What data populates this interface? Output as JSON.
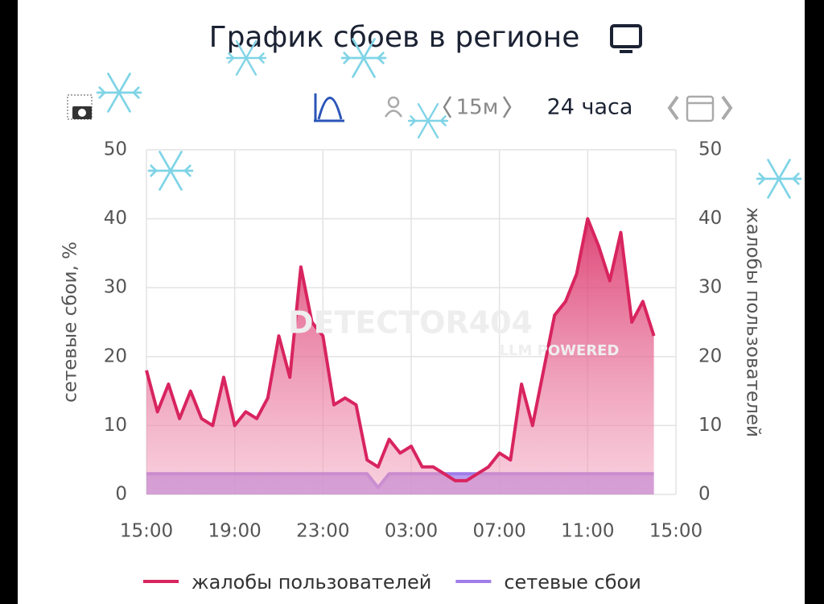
{
  "chart_data": {
    "type": "line",
    "title": "График сбоев в регионе",
    "toolbar": {
      "interval": "15м",
      "range": "24 часа"
    },
    "watermark": {
      "name": "DETECTOR404",
      "tagline": "LLM POWERED"
    },
    "ylabel": "сетевые сбои, %",
    "y2label": "жалобы пользователей",
    "categories": [
      "15:00",
      null,
      null,
      null,
      null,
      null,
      null,
      null,
      "19:00",
      null,
      null,
      null,
      null,
      null,
      null,
      null,
      "23:00",
      null,
      null,
      null,
      null,
      null,
      null,
      null,
      "03:00",
      null,
      null,
      null,
      null,
      null,
      null,
      null,
      "07:00",
      null,
      null,
      null,
      null,
      null,
      null,
      null,
      "11:00",
      null,
      null,
      null,
      null,
      null,
      null,
      null,
      "15:00"
    ],
    "series": [
      {
        "name": "жалобы пользователей",
        "color": "#d8245f",
        "axis": "y2",
        "values": [
          18,
          12,
          16,
          11,
          15,
          11,
          10,
          17,
          10,
          12,
          11,
          14,
          23,
          17,
          33,
          25,
          23,
          13,
          14,
          13,
          5,
          4,
          8,
          6,
          7,
          4,
          4,
          3,
          2,
          2,
          3,
          4,
          6,
          5,
          16,
          10,
          18,
          26,
          28,
          32,
          40,
          36,
          31,
          38,
          25,
          28,
          23,
          null,
          null
        ]
      },
      {
        "name": "сетевые сбои",
        "color": "#a07de8",
        "values": [
          3,
          3,
          3,
          3,
          3,
          3,
          3,
          3,
          3,
          3,
          3,
          3,
          3,
          3,
          3,
          3,
          3,
          3,
          3,
          3,
          3,
          1,
          3,
          3,
          3,
          3,
          3,
          3,
          3,
          3,
          3,
          3,
          3,
          3,
          3,
          3,
          3,
          3,
          3,
          3,
          3,
          3,
          3,
          3,
          3,
          3,
          3,
          null,
          null
        ]
      }
    ],
    "ylim": [
      0,
      50
    ],
    "yticks": [
      0,
      10,
      20,
      30,
      40,
      50
    ],
    "y2lim": [
      0,
      50
    ],
    "y2ticks": [
      0,
      10,
      20,
      30,
      40,
      50
    ],
    "grid": true
  }
}
